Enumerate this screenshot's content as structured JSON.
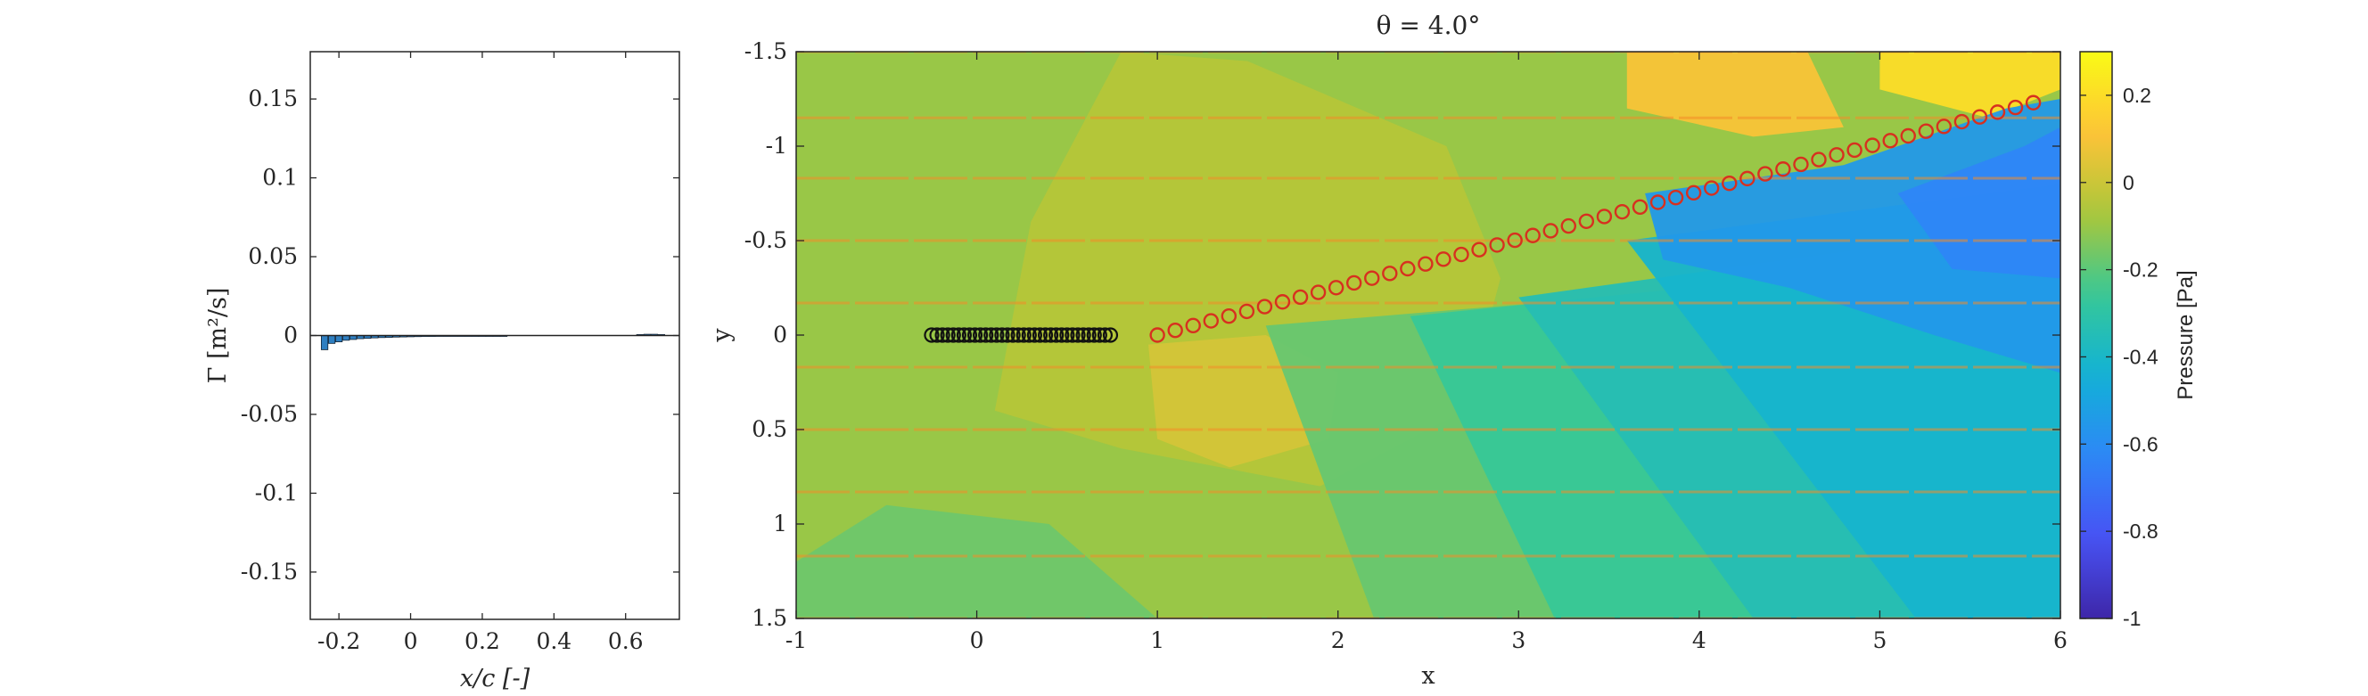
{
  "chart_data": [
    {
      "type": "bar",
      "panel": "circulation",
      "xlabel": "x/c [-]",
      "ylabel": "Γ [m²/s]",
      "xlim": [
        -0.28,
        0.75
      ],
      "ylim": [
        -0.18,
        0.18
      ],
      "xticks": [
        "-0.2",
        "0",
        "0.2",
        "0.4",
        "0.6"
      ],
      "xtick_values": [
        -0.2,
        0,
        0.2,
        0.4,
        0.6
      ],
      "yticks": [
        "0.15",
        "0.1",
        "0.05",
        "0",
        "-0.05",
        "-0.1",
        "-0.15"
      ],
      "ytick_values": [
        0.15,
        0.1,
        0.05,
        0,
        -0.05,
        -0.1,
        -0.15
      ],
      "grid": false,
      "bar_color": "#2f7fc1",
      "x": [
        -0.24,
        -0.22,
        -0.2,
        -0.18,
        -0.16,
        -0.14,
        -0.12,
        -0.1,
        -0.08,
        -0.06,
        -0.04,
        -0.02,
        0.0,
        0.02,
        0.04,
        0.06,
        0.08,
        0.1,
        0.12,
        0.14,
        0.16,
        0.18,
        0.2,
        0.22,
        0.24,
        0.26,
        0.64,
        0.66,
        0.68,
        0.7
      ],
      "values": [
        -0.009,
        -0.005,
        -0.004,
        -0.003,
        -0.0025,
        -0.002,
        -0.0018,
        -0.0015,
        -0.0013,
        -0.0012,
        -0.001,
        -0.0009,
        -0.0008,
        -0.0007,
        -0.0006,
        -0.0006,
        -0.0005,
        -0.0005,
        -0.0004,
        -0.0004,
        -0.0004,
        -0.0003,
        -0.0003,
        -0.0003,
        -0.0002,
        -0.0002,
        0.0006,
        0.0008,
        0.0008,
        0.0006
      ]
    },
    {
      "type": "heatmap",
      "panel": "pressure-field",
      "title": "θ = 4.0°",
      "xlabel": "x",
      "ylabel": "y",
      "xlim": [
        -1,
        6
      ],
      "ylim": [
        -1.5,
        1.5
      ],
      "y_reversed": true,
      "xticks": [
        "-1",
        "0",
        "1",
        "2",
        "3",
        "4",
        "5",
        "6"
      ],
      "xtick_values": [
        -1,
        0,
        1,
        2,
        3,
        4,
        5,
        6
      ],
      "yticks": [
        "-1.5",
        "-1",
        "-0.5",
        "0",
        "0.5",
        "1",
        "1.5"
      ],
      "ytick_values": [
        -1.5,
        -1,
        -0.5,
        0,
        0.5,
        1,
        1.5
      ],
      "colorbar": {
        "label": "Pressure [Pa]",
        "limits": [
          -1,
          0.3
        ],
        "ticks": [
          "0.2",
          "0",
          "-0.2",
          "-0.4",
          "-0.6",
          "-0.8",
          "-1"
        ],
        "tick_values": [
          0.2,
          0,
          -0.2,
          -0.4,
          -0.6,
          -0.8,
          -1
        ],
        "colormap": "parula"
      },
      "background_pressure": -0.1,
      "pressure_regions": [
        {
          "name": "leading-lobe-high",
          "pressure": -0.05,
          "points": [
            [
              0.8,
              -1.5
            ],
            [
              1.5,
              -1.45
            ],
            [
              2.6,
              -1.0
            ],
            [
              2.9,
              -0.3
            ],
            [
              2.7,
              0.4
            ],
            [
              1.9,
              0.8
            ],
            [
              0.8,
              0.6
            ],
            [
              0.1,
              0.4
            ],
            [
              0.3,
              -0.6
            ]
          ]
        },
        {
          "name": "under-lobe-high",
          "pressure": 0.02,
          "points": [
            [
              0.95,
              0.05
            ],
            [
              1.6,
              0.0
            ],
            [
              2.0,
              0.2
            ],
            [
              1.95,
              0.55
            ],
            [
              1.4,
              0.7
            ],
            [
              1.0,
              0.55
            ]
          ]
        },
        {
          "name": "upper-right-high",
          "pressure": 0.1,
          "points": [
            [
              3.6,
              -1.5
            ],
            [
              4.6,
              -1.5
            ],
            [
              4.8,
              -1.1
            ],
            [
              4.3,
              -1.05
            ],
            [
              3.6,
              -1.2
            ]
          ]
        },
        {
          "name": "far-upper-high",
          "pressure": 0.2,
          "points": [
            [
              5.0,
              -1.5
            ],
            [
              6.0,
              -1.5
            ],
            [
              6.0,
              -1.3
            ],
            [
              5.6,
              -1.15
            ],
            [
              5.0,
              -1.3
            ]
          ]
        },
        {
          "name": "lower-left-low",
          "pressure": -0.17,
          "points": [
            [
              -1.0,
              1.2
            ],
            [
              -0.5,
              0.9
            ],
            [
              0.4,
              1.0
            ],
            [
              1.0,
              1.5
            ],
            [
              -1.0,
              1.5
            ]
          ]
        },
        {
          "name": "wake-fan-1",
          "pressure": -0.18,
          "points": [
            [
              1.6,
              -0.05
            ],
            [
              6.0,
              -0.4
            ],
            [
              6.0,
              1.5
            ],
            [
              2.2,
              1.5
            ]
          ]
        },
        {
          "name": "wake-fan-2",
          "pressure": -0.26,
          "points": [
            [
              2.4,
              -0.1
            ],
            [
              6.0,
              -0.45
            ],
            [
              6.0,
              1.5
            ],
            [
              3.2,
              1.5
            ]
          ]
        },
        {
          "name": "wake-fan-3",
          "pressure": -0.34,
          "points": [
            [
              3.0,
              -0.2
            ],
            [
              6.0,
              -0.6
            ],
            [
              6.0,
              1.5
            ],
            [
              4.3,
              1.5
            ]
          ]
        },
        {
          "name": "wake-fan-4",
          "pressure": -0.42,
          "points": [
            [
              3.6,
              -0.5
            ],
            [
              6.0,
              -0.8
            ],
            [
              6.0,
              1.5
            ],
            [
              5.2,
              1.5
            ]
          ]
        },
        {
          "name": "wake-core",
          "pressure": -0.55,
          "points": [
            [
              3.7,
              -0.75
            ],
            [
              4.8,
              -0.9
            ],
            [
              5.7,
              -1.2
            ],
            [
              6.0,
              -1.25
            ],
            [
              6.0,
              0.2
            ],
            [
              5.3,
              0.0
            ],
            [
              4.5,
              -0.25
            ],
            [
              3.8,
              -0.4
            ]
          ]
        },
        {
          "name": "wake-core-deep",
          "pressure": -0.63,
          "points": [
            [
              5.1,
              -0.75
            ],
            [
              5.8,
              -1.0
            ],
            [
              6.0,
              -1.1
            ],
            [
              6.0,
              -0.3
            ],
            [
              5.4,
              -0.35
            ]
          ]
        }
      ],
      "streamline_y": [
        -1.5,
        -1.15,
        -0.83,
        -0.5,
        -0.17,
        0.17,
        0.5,
        0.83,
        1.17,
        1.5
      ],
      "streamline_color": "#f28c28",
      "airfoil_points": {
        "marker": "circle",
        "edge_color": "#111111",
        "x": [
          -0.25,
          -0.22,
          -0.19,
          -0.16,
          -0.13,
          -0.1,
          -0.07,
          -0.04,
          -0.01,
          0.02,
          0.05,
          0.08,
          0.11,
          0.14,
          0.17,
          0.2,
          0.23,
          0.26,
          0.29,
          0.32,
          0.35,
          0.38,
          0.41,
          0.44,
          0.47,
          0.5,
          0.53,
          0.56,
          0.59,
          0.62,
          0.65,
          0.68,
          0.71,
          0.74
        ],
        "y": [
          0,
          0,
          0,
          0,
          0,
          0,
          0,
          0,
          0,
          0,
          0,
          0,
          0,
          0,
          0,
          0,
          0,
          0,
          0,
          0,
          0,
          0,
          0,
          0,
          0,
          0,
          0,
          0,
          0,
          0,
          0,
          0,
          0,
          0
        ]
      },
      "wake_points": {
        "marker": "circle",
        "edge_color": "#d7301f",
        "x_start": 1.0,
        "x_end": 5.85,
        "y_start": 0.0,
        "y_end": -1.23,
        "count": 50
      }
    }
  ]
}
